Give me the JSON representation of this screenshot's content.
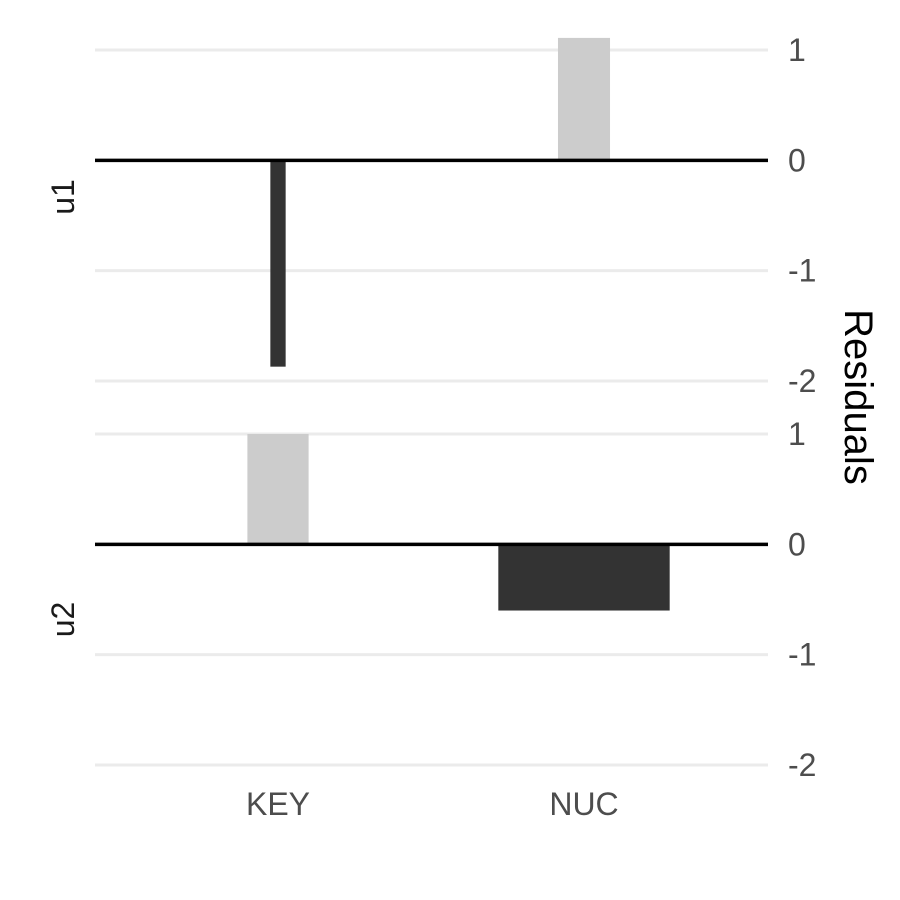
{
  "chart_data": {
    "type": "bar",
    "ylabel": "Residuals",
    "categories": [
      "KEY",
      "NUC"
    ],
    "facets": [
      {
        "label": "u1",
        "ylim": [
          -2,
          1.1
        ],
        "yticks": [
          1,
          0,
          -1,
          -2
        ],
        "values": [
          -1.87,
          1.11
        ],
        "colors": [
          "#333333",
          "#cccccc"
        ],
        "widths": [
          0.05,
          0.17
        ]
      },
      {
        "label": "u2",
        "ylim": [
          -2,
          1.0
        ],
        "yticks": [
          1,
          0,
          -1,
          -2
        ],
        "values": [
          1.0,
          -0.6
        ],
        "colors": [
          "#cccccc",
          "#333333"
        ],
        "widths": [
          0.2,
          0.56
        ]
      }
    ],
    "grid": true,
    "yaxis_position": "right"
  }
}
